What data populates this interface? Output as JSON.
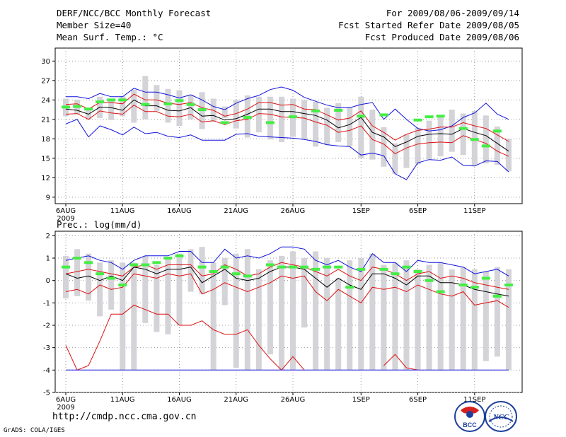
{
  "header": {
    "title": "DERF/NCC/BCC Monthly Forecast",
    "member_size": "Member Size=40",
    "variable": "Mean Surf. Temp.: °C",
    "period": "For 2009/08/06-2009/09/14",
    "start_date": "Fcst Started Refer Date 2009/08/05",
    "produced_date": "Fcst Produced Date 2009/08/06"
  },
  "footer": {
    "url": "http://cmdp.ncc.cma.gov.cn",
    "grads": "GrADS: COLA/IGES",
    "logo_left": "BCC",
    "logo_right": "NCC"
  },
  "colors": {
    "bar": "#d3d3d8",
    "mean": "#000000",
    "spread": "#dd1010",
    "envelope": "#1010dd",
    "marker": "#44ee44"
  },
  "chart_data": [
    {
      "type": "line",
      "title": "Mean Surf. Temp.: °C",
      "x_labels": [
        "6AUG",
        "11AUG",
        "16AUG",
        "21AUG",
        "26AUG",
        "1SEP",
        "6SEP",
        "11SEP"
      ],
      "x_label_days": [
        0,
        5,
        10,
        15,
        20,
        26,
        31,
        36
      ],
      "x_sublabel": "2009",
      "y_ticks": [
        9,
        12,
        15,
        18,
        21,
        24,
        27,
        30
      ],
      "ylim": [
        8,
        32
      ],
      "days": 40,
      "bar_low": [
        21.5,
        21.8,
        21.0,
        21.2,
        20.9,
        21.5,
        20.5,
        21.0,
        22.3,
        20.5,
        20.0,
        21.0,
        19.5,
        20.6,
        21.2,
        19.6,
        18.2,
        19.0,
        17.9,
        17.5,
        18.3,
        18.0,
        16.8,
        17.0,
        17.5,
        16.9,
        15.0,
        14.8,
        13.7,
        12.6,
        13.5,
        14.1,
        14.8,
        15.3,
        16.0,
        15.5,
        13.9,
        14.2,
        14.0,
        13.0
      ],
      "bar_high": [
        24.2,
        24.0,
        22.4,
        24.5,
        24.2,
        24.6,
        25.6,
        27.7,
        26.3,
        25.7,
        25.5,
        24.8,
        25.2,
        24.2,
        23.0,
        24.0,
        24.7,
        24.5,
        24.5,
        24.5,
        24.2,
        24.0,
        23.7,
        22.8,
        23.5,
        22.9,
        24.5,
        22.5,
        19.8,
        17.3,
        18.7,
        19.7,
        20.8,
        21.3,
        22.5,
        21.9,
        22.3,
        21.6,
        19.9,
        18.0
      ],
      "series": [
        {
          "name": "upper envelope",
          "color": "#1010dd",
          "values": [
            24.5,
            24.5,
            24.2,
            25.0,
            24.5,
            24.5,
            25.8,
            25.2,
            25.2,
            24.8,
            24.3,
            24.8,
            24.0,
            23.0,
            22.5,
            23.5,
            24.2,
            24.7,
            25.6,
            26.0,
            25.5,
            24.4,
            23.8,
            23.2,
            22.8,
            22.8,
            23.3,
            23.6,
            21.0,
            22.6,
            21.0,
            19.6,
            19.2,
            19.4,
            20.0,
            21.3,
            22.0,
            23.5,
            21.8,
            21.0
          ]
        },
        {
          "name": "upper spread",
          "color": "#dd1010",
          "values": [
            23.3,
            23.4,
            22.6,
            23.6,
            23.6,
            23.4,
            24.9,
            24.0,
            24.0,
            23.5,
            23.3,
            23.6,
            22.8,
            22.4,
            21.5,
            21.9,
            22.6,
            23.6,
            23.6,
            23.2,
            23.3,
            22.6,
            22.5,
            21.7,
            20.9,
            21.2,
            22.3,
            20.0,
            19.0,
            17.8,
            18.7,
            19.3,
            19.5,
            19.8,
            19.8,
            20.5,
            20.0,
            19.6,
            18.6,
            17.6
          ]
        },
        {
          "name": "ensemble mean",
          "color": "#000000",
          "values": [
            22.6,
            22.4,
            21.8,
            22.9,
            22.8,
            22.4,
            24.0,
            23.1,
            23.1,
            22.4,
            22.3,
            22.8,
            21.5,
            21.6,
            20.9,
            21.1,
            21.8,
            22.6,
            22.6,
            22.2,
            22.2,
            21.9,
            21.6,
            20.9,
            19.7,
            20.2,
            21.3,
            19.0,
            18.3,
            16.8,
            17.5,
            18.4,
            18.7,
            18.8,
            18.7,
            19.6,
            19.0,
            18.5,
            17.3,
            16.1
          ]
        },
        {
          "name": "lower spread",
          "color": "#dd1010",
          "values": [
            21.8,
            21.9,
            21.0,
            22.3,
            22.0,
            21.8,
            23.2,
            22.2,
            22.2,
            21.5,
            21.4,
            21.8,
            20.6,
            20.8,
            20.2,
            20.8,
            21.0,
            21.9,
            21.8,
            21.4,
            21.3,
            21.2,
            20.6,
            20.1,
            19.0,
            19.3,
            20.0,
            17.9,
            17.2,
            15.7,
            16.6,
            17.2,
            17.4,
            17.5,
            17.4,
            18.5,
            17.9,
            17.3,
            16.1,
            15.3
          ]
        },
        {
          "name": "lower envelope",
          "color": "#1010dd",
          "values": [
            20.3,
            21.0,
            18.3,
            20.0,
            19.4,
            18.6,
            19.8,
            18.8,
            19.0,
            18.4,
            18.2,
            18.6,
            17.8,
            17.8,
            17.8,
            18.7,
            18.8,
            18.4,
            18.3,
            18.2,
            18.1,
            17.9,
            17.6,
            17.1,
            16.9,
            16.8,
            15.5,
            15.8,
            15.4,
            12.6,
            11.7,
            14.3,
            14.8,
            14.7,
            15.2,
            13.9,
            13.8,
            14.6,
            14.5,
            12.9
          ]
        }
      ],
      "markers": {
        "name": "observed/forecast marker",
        "color": "#44ee44",
        "days": [
          0,
          1,
          2,
          3,
          4,
          5,
          7,
          9,
          10,
          11,
          12,
          14,
          16,
          18,
          20,
          22,
          24,
          26,
          28,
          31,
          32,
          33,
          35,
          36,
          37,
          38
        ],
        "values": [
          22.9,
          23.0,
          22.6,
          23.7,
          24.0,
          24.0,
          23.3,
          23.4,
          23.9,
          23.3,
          22.5,
          20.5,
          21.3,
          20.5,
          21.4,
          22.3,
          22.4,
          21.5,
          21.7,
          20.9,
          21.4,
          21.5,
          19.6,
          17.9,
          16.9,
          19.2
        ]
      }
    },
    {
      "type": "line",
      "title": "Prec.: log(mm/d)",
      "x_labels": [
        "6AUG",
        "11AUG",
        "16AUG",
        "21AUG",
        "26AUG",
        "1SEP",
        "6SEP",
        "11SEP"
      ],
      "x_label_days": [
        0,
        5,
        10,
        15,
        20,
        26,
        31,
        36
      ],
      "x_sublabel": "2009",
      "y_ticks": [
        -5,
        -4,
        -3,
        -2,
        -1,
        0,
        1,
        2
      ],
      "ylim": [
        -5,
        2.2
      ],
      "days": 40,
      "bar_low": [
        -0.8,
        -0.7,
        -0.9,
        -1.6,
        -1.3,
        -4.0,
        -4.0,
        -1.9,
        -2.3,
        -2.4,
        -2.0,
        -0.5,
        -0.6,
        -4.0,
        -1.1,
        -3.9,
        -4.0,
        -4.0,
        -3.3,
        -4.0,
        -4.0,
        -2.1,
        -4.0,
        -4.0,
        -4.0,
        -4.0,
        -4.0,
        -4.0,
        -4.0,
        -4.0,
        -4.0,
        -4.0,
        -4.0,
        -4.0,
        -4.0,
        -4.0,
        -4.0,
        -3.6,
        -3.4,
        -4.0
      ],
      "bar_high": [
        1.1,
        1.4,
        1.2,
        0.8,
        0.9,
        0.8,
        0.8,
        1.1,
        0.7,
        1.0,
        1.2,
        1.4,
        1.5,
        0.8,
        1.0,
        1.2,
        1.4,
        0.5,
        0.9,
        1.1,
        1.3,
        1.0,
        1.3,
        1.0,
        0.1,
        0.9,
        1.0,
        1.2,
        0.7,
        0.8,
        0.9,
        0.5,
        0.7,
        0.8,
        0.5,
        0.6,
        0.5,
        0.4,
        0.6,
        0.5
      ],
      "series": [
        {
          "name": "upper envelope",
          "color": "#1010dd",
          "values": [
            0.9,
            1.0,
            1.1,
            0.9,
            0.8,
            0.5,
            0.9,
            1.1,
            1.1,
            1.1,
            1.3,
            1.3,
            0.8,
            0.8,
            1.4,
            1.0,
            1.1,
            1.0,
            1.2,
            1.5,
            1.5,
            1.4,
            0.9,
            0.7,
            0.9,
            0.6,
            0.4,
            1.2,
            0.8,
            0.8,
            0.4,
            0.9,
            0.8,
            0.8,
            0.7,
            0.6,
            0.3,
            0.4,
            0.5,
            0.2
          ]
        },
        {
          "name": "upper spread",
          "color": "#dd1010",
          "values": [
            0.3,
            0.4,
            0.5,
            0.4,
            0.3,
            0.2,
            0.6,
            0.7,
            0.5,
            0.7,
            0.7,
            0.7,
            0.2,
            0.3,
            0.7,
            0.5,
            0.2,
            0.3,
            0.6,
            0.8,
            0.7,
            0.6,
            0.4,
            0.2,
            0.5,
            0.2,
            0.0,
            0.6,
            0.5,
            0.3,
            0.0,
            0.3,
            0.4,
            0.1,
            0.2,
            0.1,
            -0.1,
            -0.2,
            -0.3,
            -0.4
          ]
        },
        {
          "name": "ensemble mean",
          "color": "#000000",
          "values": [
            0.3,
            0.1,
            0.2,
            0.0,
            0.2,
            0.0,
            0.6,
            0.5,
            0.3,
            0.5,
            0.5,
            0.6,
            -0.1,
            0.2,
            0.5,
            0.1,
            0.0,
            0.1,
            0.4,
            0.6,
            0.6,
            0.5,
            0.1,
            -0.3,
            0.1,
            -0.2,
            -0.4,
            0.3,
            0.3,
            0.1,
            -0.2,
            0.2,
            0.2,
            -0.1,
            -0.1,
            -0.2,
            -0.4,
            -0.5,
            -0.6,
            -0.7
          ]
        },
        {
          "name": "lower spread",
          "color": "#dd1010",
          "values": [
            -0.5,
            -0.4,
            -0.6,
            -0.2,
            -0.4,
            -0.3,
            0.3,
            0.2,
            0.1,
            0.3,
            0.2,
            0.3,
            -0.6,
            -0.4,
            -0.1,
            -0.3,
            -0.5,
            -0.3,
            -0.1,
            0.2,
            0.1,
            0.2,
            -0.5,
            -0.9,
            -0.4,
            -0.7,
            -1.0,
            -0.3,
            -0.4,
            -0.3,
            -0.5,
            -0.2,
            -0.4,
            -0.6,
            -0.7,
            -0.5,
            -1.1,
            -1.0,
            -0.9,
            -1.2
          ]
        },
        {
          "name": "lower limit",
          "color": "#dd1010",
          "values": [
            -2.9,
            -4.0,
            -3.8,
            -2.7,
            -1.5,
            -1.5,
            -1.1,
            -1.3,
            -1.5,
            -1.5,
            -2.0,
            -2.0,
            -1.8,
            -2.2,
            -2.4,
            -2.4,
            -2.2,
            -2.9,
            -3.5,
            -4.0,
            -3.4,
            -4.0,
            null,
            null,
            null,
            null,
            null,
            null,
            -3.8,
            -3.3,
            -3.9,
            -4.0,
            null,
            null,
            null,
            null,
            null,
            null,
            null,
            null
          ]
        },
        {
          "name": "lower envelope",
          "color": "#1010dd",
          "values": [
            -4.0,
            -4.0,
            -4.0,
            -4.0,
            -4.0,
            -4.0,
            -4.0,
            -4.0,
            -4.0,
            -4.0,
            -4.0,
            -4.0,
            -4.0,
            -4.0,
            -4.0,
            -4.0,
            -4.0,
            -4.0,
            -4.0,
            -4.0,
            -4.0,
            -4.0,
            -4.0,
            -4.0,
            -4.0,
            -4.0,
            -4.0,
            -4.0,
            -4.0,
            -4.0,
            -4.0,
            -4.0,
            -4.0,
            -4.0,
            -4.0,
            -4.0,
            -4.0,
            -4.0,
            -4.0,
            -4.0
          ]
        }
      ],
      "markers": {
        "name": "observed/forecast marker",
        "color": "#44ee44",
        "days": [
          0,
          1,
          2,
          3,
          4,
          5,
          6,
          7,
          8,
          9,
          10,
          12,
          13,
          14,
          15,
          16,
          18,
          19,
          20,
          21,
          22,
          23,
          24,
          25,
          26,
          28,
          29,
          30,
          31,
          32,
          33,
          35,
          36,
          37,
          38,
          39
        ],
        "values": [
          0.6,
          1.0,
          0.8,
          0.3,
          0.1,
          -0.2,
          0.7,
          0.7,
          0.8,
          1.0,
          1.1,
          0.6,
          0.4,
          0.6,
          0.3,
          0.2,
          0.7,
          0.6,
          0.6,
          0.6,
          0.5,
          0.6,
          0.6,
          -0.3,
          0.5,
          0.5,
          0.3,
          0.6,
          0.4,
          0.0,
          -0.5,
          -0.2,
          -0.3,
          0.1,
          -0.7,
          -0.2
        ]
      }
    }
  ]
}
